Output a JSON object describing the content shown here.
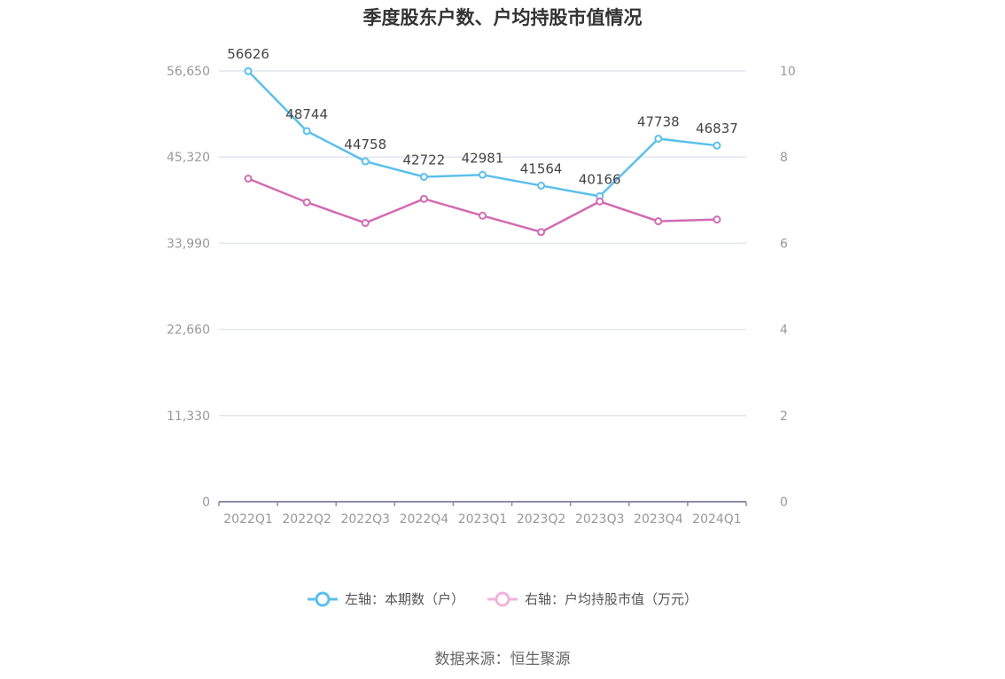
{
  "title": "季度股东户数、户均持股市值情况",
  "source": "数据来源：恒生聚源",
  "colors": {
    "left_series": "#5bc0eb",
    "right_series": "#d36bb3",
    "grid": "#e3e6f0",
    "axis": "#8c8ca6"
  },
  "chart_data": {
    "type": "line",
    "categories": [
      "2022Q1",
      "2022Q2",
      "2022Q3",
      "2022Q4",
      "2023Q1",
      "2023Q2",
      "2023Q3",
      "2023Q4",
      "2024Q1"
    ],
    "y_left": {
      "ticks": [
        "0",
        "11,330",
        "22,660",
        "33,990",
        "45,320",
        "56,650"
      ],
      "range": [
        0,
        56650
      ]
    },
    "y_right": {
      "ticks": [
        "0",
        "2",
        "4",
        "6",
        "8",
        "10"
      ],
      "range": [
        0,
        10
      ]
    },
    "grid": true,
    "legend_position": "bottom",
    "series": [
      {
        "name": "左轴：本期数（户）",
        "axis": "left",
        "values": [
          56626,
          48744,
          44758,
          42722,
          42981,
          41564,
          40166,
          47738,
          46837
        ],
        "labels": [
          "56626",
          "48744",
          "44758",
          "42722",
          "42981",
          "41564",
          "40166",
          "47738",
          "46837"
        ]
      },
      {
        "name": "右轴：户均持股市值（万元）",
        "axis": "right",
        "values": [
          7.5,
          6.95,
          6.47,
          7.03,
          6.64,
          6.26,
          6.97,
          6.51,
          6.55
        ]
      }
    ]
  }
}
